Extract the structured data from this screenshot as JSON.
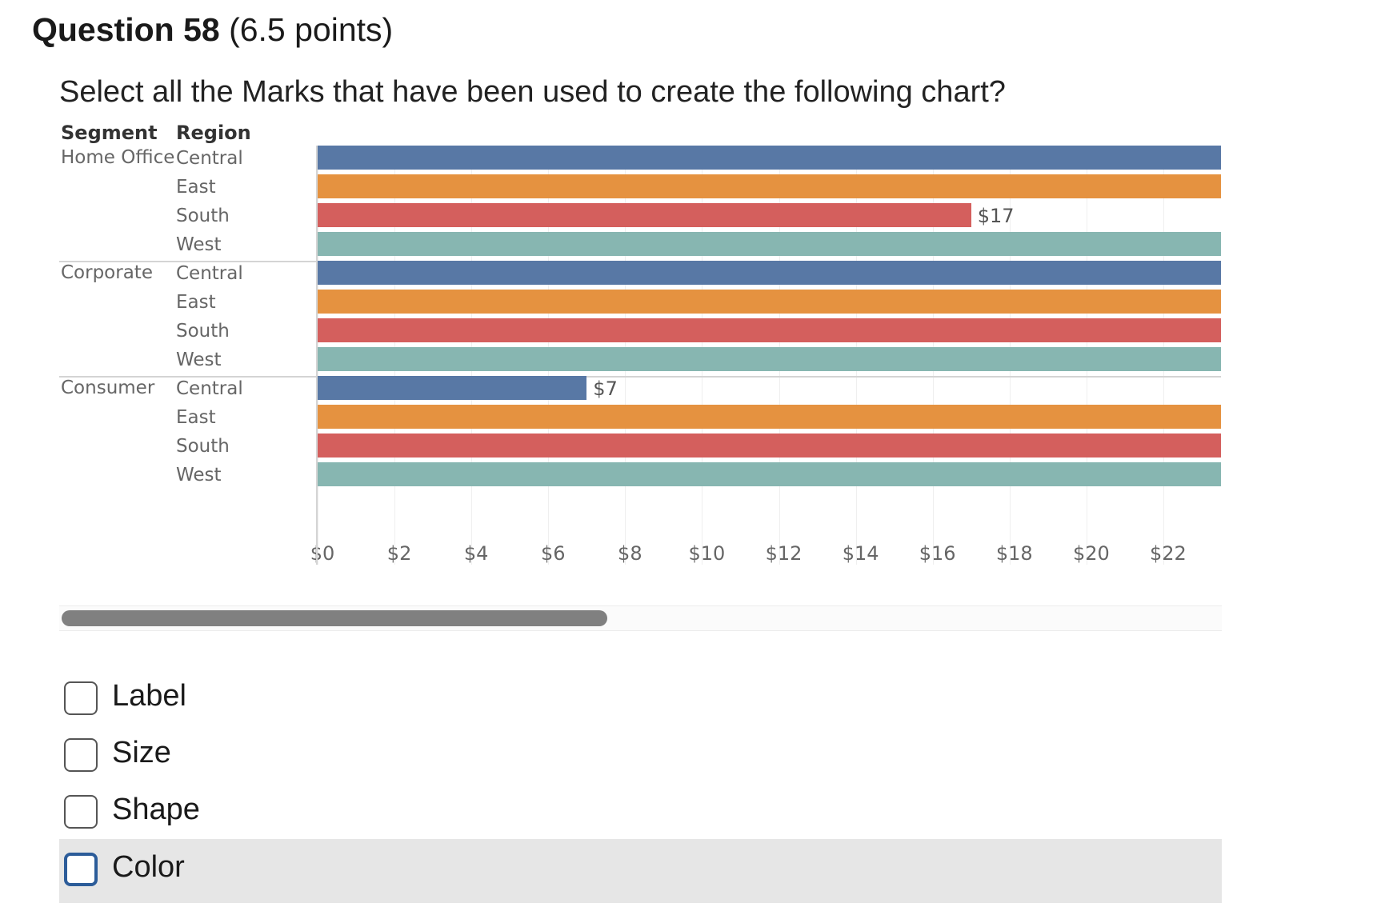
{
  "question": {
    "title": "Question 58",
    "points": "(6.5 points)",
    "prompt": "Select all the Marks that have been used to create the following chart?"
  },
  "chart_data": {
    "type": "bar",
    "orientation": "horizontal",
    "row_headers": [
      "Segment",
      "Region"
    ],
    "segments": [
      "Home Office",
      "Corporate",
      "Consumer"
    ],
    "regions": [
      "Central",
      "East",
      "South",
      "West"
    ],
    "region_colors": {
      "Central": "#5878a5",
      "East": "#e59240",
      "South": "#d45f5d",
      "West": "#87b6b1"
    },
    "rows": [
      {
        "segment": "Home Office",
        "region": "Central",
        "value": 23.5
      },
      {
        "segment": "Home Office",
        "region": "East",
        "value": 23.5
      },
      {
        "segment": "Home Office",
        "region": "South",
        "value": 17,
        "label": "$17"
      },
      {
        "segment": "Home Office",
        "region": "West",
        "value": 23.5
      },
      {
        "segment": "Corporate",
        "region": "Central",
        "value": 23.5
      },
      {
        "segment": "Corporate",
        "region": "East",
        "value": 23.5
      },
      {
        "segment": "Corporate",
        "region": "South",
        "value": 23.5
      },
      {
        "segment": "Corporate",
        "region": "West",
        "value": 23.5
      },
      {
        "segment": "Consumer",
        "region": "Central",
        "value": 7,
        "label": "$7"
      },
      {
        "segment": "Consumer",
        "region": "East",
        "value": 23.5
      },
      {
        "segment": "Consumer",
        "region": "South",
        "value": 23.5
      },
      {
        "segment": "Consumer",
        "region": "West",
        "value": 23.5
      }
    ],
    "x_ticks": [
      "$0",
      "$2",
      "$4",
      "$6",
      "$8",
      "$10",
      "$12",
      "$14",
      "$16",
      "$18",
      "$20",
      "$22"
    ],
    "xlim": [
      0,
      23.5
    ],
    "grid": true
  },
  "options": [
    {
      "label": "Label",
      "checked": false
    },
    {
      "label": "Size",
      "checked": false
    },
    {
      "label": "Shape",
      "checked": false
    },
    {
      "label": "Color",
      "checked": false,
      "highlighted": true
    }
  ]
}
